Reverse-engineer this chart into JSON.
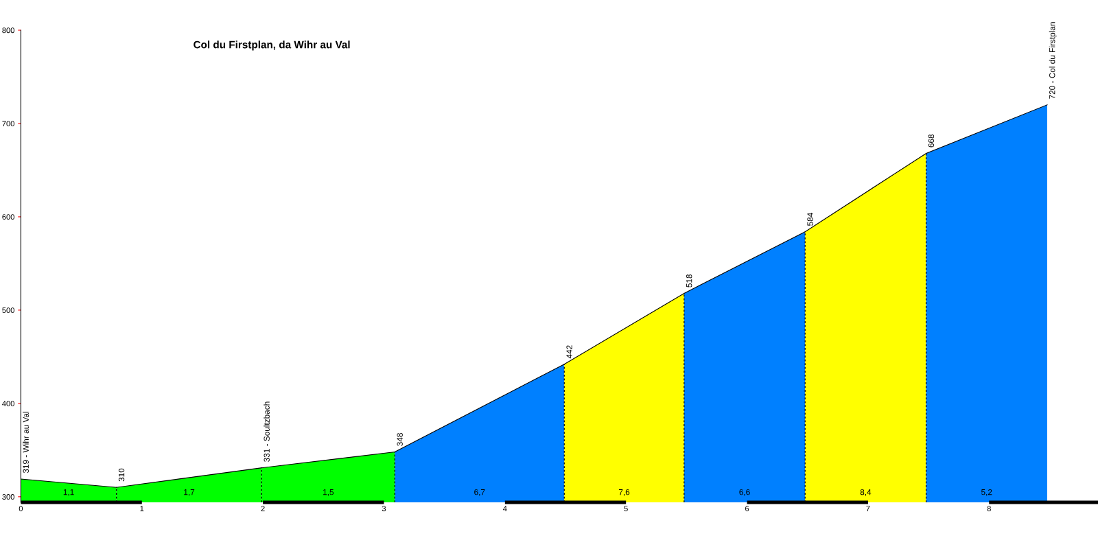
{
  "chart_data": {
    "type": "area",
    "title": "Col du Firstplan, da Wihr au Val",
    "xlim": [
      0,
      8.9
    ],
    "xticks": [
      0,
      1,
      2,
      3,
      4,
      5,
      6,
      7,
      8
    ],
    "ylim": [
      294,
      800
    ],
    "yticks": [
      300,
      400,
      500,
      600,
      700,
      800
    ],
    "grid": false,
    "series": [
      {
        "color": "#00ff00",
        "x": [
          0,
          0.79
        ],
        "values": [
          319,
          310
        ]
      },
      {
        "color": "#00ff00",
        "x": [
          0.79,
          1.99
        ],
        "values": [
          310,
          331
        ]
      },
      {
        "color": "#00ff00",
        "x": [
          1.99,
          3.09
        ],
        "values": [
          331,
          348
        ]
      },
      {
        "color": "#0080ff",
        "x": [
          3.09,
          4.49
        ],
        "values": [
          348,
          442
        ]
      },
      {
        "color": "#ffff00",
        "x": [
          4.49,
          5.48
        ],
        "values": [
          442,
          518
        ]
      },
      {
        "color": "#0080ff",
        "x": [
          5.48,
          6.48
        ],
        "values": [
          518,
          584
        ]
      },
      {
        "color": "#ffff00",
        "x": [
          6.48,
          7.48
        ],
        "values": [
          584,
          668
        ]
      },
      {
        "color": "#0080ff",
        "x": [
          7.48,
          8.48
        ],
        "values": [
          668,
          720
        ]
      }
    ],
    "annotations": [
      {
        "text": "319 - Wihr au Val",
        "x": 0,
        "y": 319
      },
      {
        "text": "310",
        "x": 0.79,
        "y": 310
      },
      {
        "text": "331 - Soultzbach",
        "x": 1.99,
        "y": 331
      },
      {
        "text": "348",
        "x": 3.09,
        "y": 348
      },
      {
        "text": "442",
        "x": 4.49,
        "y": 442
      },
      {
        "text": "518",
        "x": 5.48,
        "y": 518
      },
      {
        "text": "584",
        "x": 6.48,
        "y": 584
      },
      {
        "text": "668",
        "x": 7.48,
        "y": 668
      },
      {
        "text": "720 - Col du Firstplan",
        "x": 8.48,
        "y": 720
      },
      "1,1",
      "1,7",
      "1,5",
      "6,7",
      "7,6",
      "6,6",
      "8,4",
      "5,2"
    ]
  }
}
